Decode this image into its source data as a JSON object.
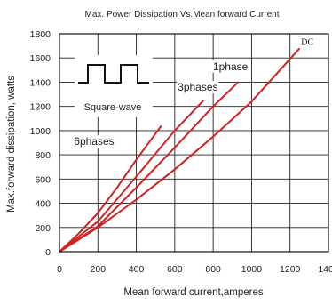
{
  "chart_data": {
    "type": "line",
    "title": "Max. Power Dissipation Vs.Mean forward Current",
    "xlabel": "Mean forward current,amperes",
    "ylabel": "Max.forward dissipation, watts",
    "xlim": [
      0,
      1400
    ],
    "ylim": [
      0,
      1800
    ],
    "x_ticks": [
      "0",
      "200",
      "400",
      "600",
      "800",
      "1000",
      "1200",
      "1400"
    ],
    "y_ticks": [
      "0",
      "200",
      "400",
      "600",
      "800",
      "1000",
      "1200",
      "1400",
      "1600",
      "1800"
    ],
    "grid": true,
    "line_color": "#d42020",
    "series": [
      {
        "name": "6phases",
        "x": [
          0,
          100,
          200,
          300,
          400,
          530
        ],
        "y": [
          0,
          150,
          320,
          530,
          760,
          1040
        ]
      },
      {
        "name": "3phases",
        "x": [
          0,
          200,
          400,
          600,
          750
        ],
        "y": [
          0,
          250,
          620,
          1000,
          1250
        ]
      },
      {
        "name": "1phase",
        "x": [
          0,
          200,
          400,
          600,
          800,
          930
        ],
        "y": [
          0,
          210,
          530,
          860,
          1200,
          1400
        ]
      },
      {
        "name": "DC",
        "x": [
          0,
          200,
          400,
          600,
          800,
          1000,
          1250
        ],
        "y": [
          0,
          200,
          430,
          680,
          950,
          1240,
          1680
        ]
      }
    ],
    "annotations": {
      "square_wave": "Square-wave"
    }
  }
}
